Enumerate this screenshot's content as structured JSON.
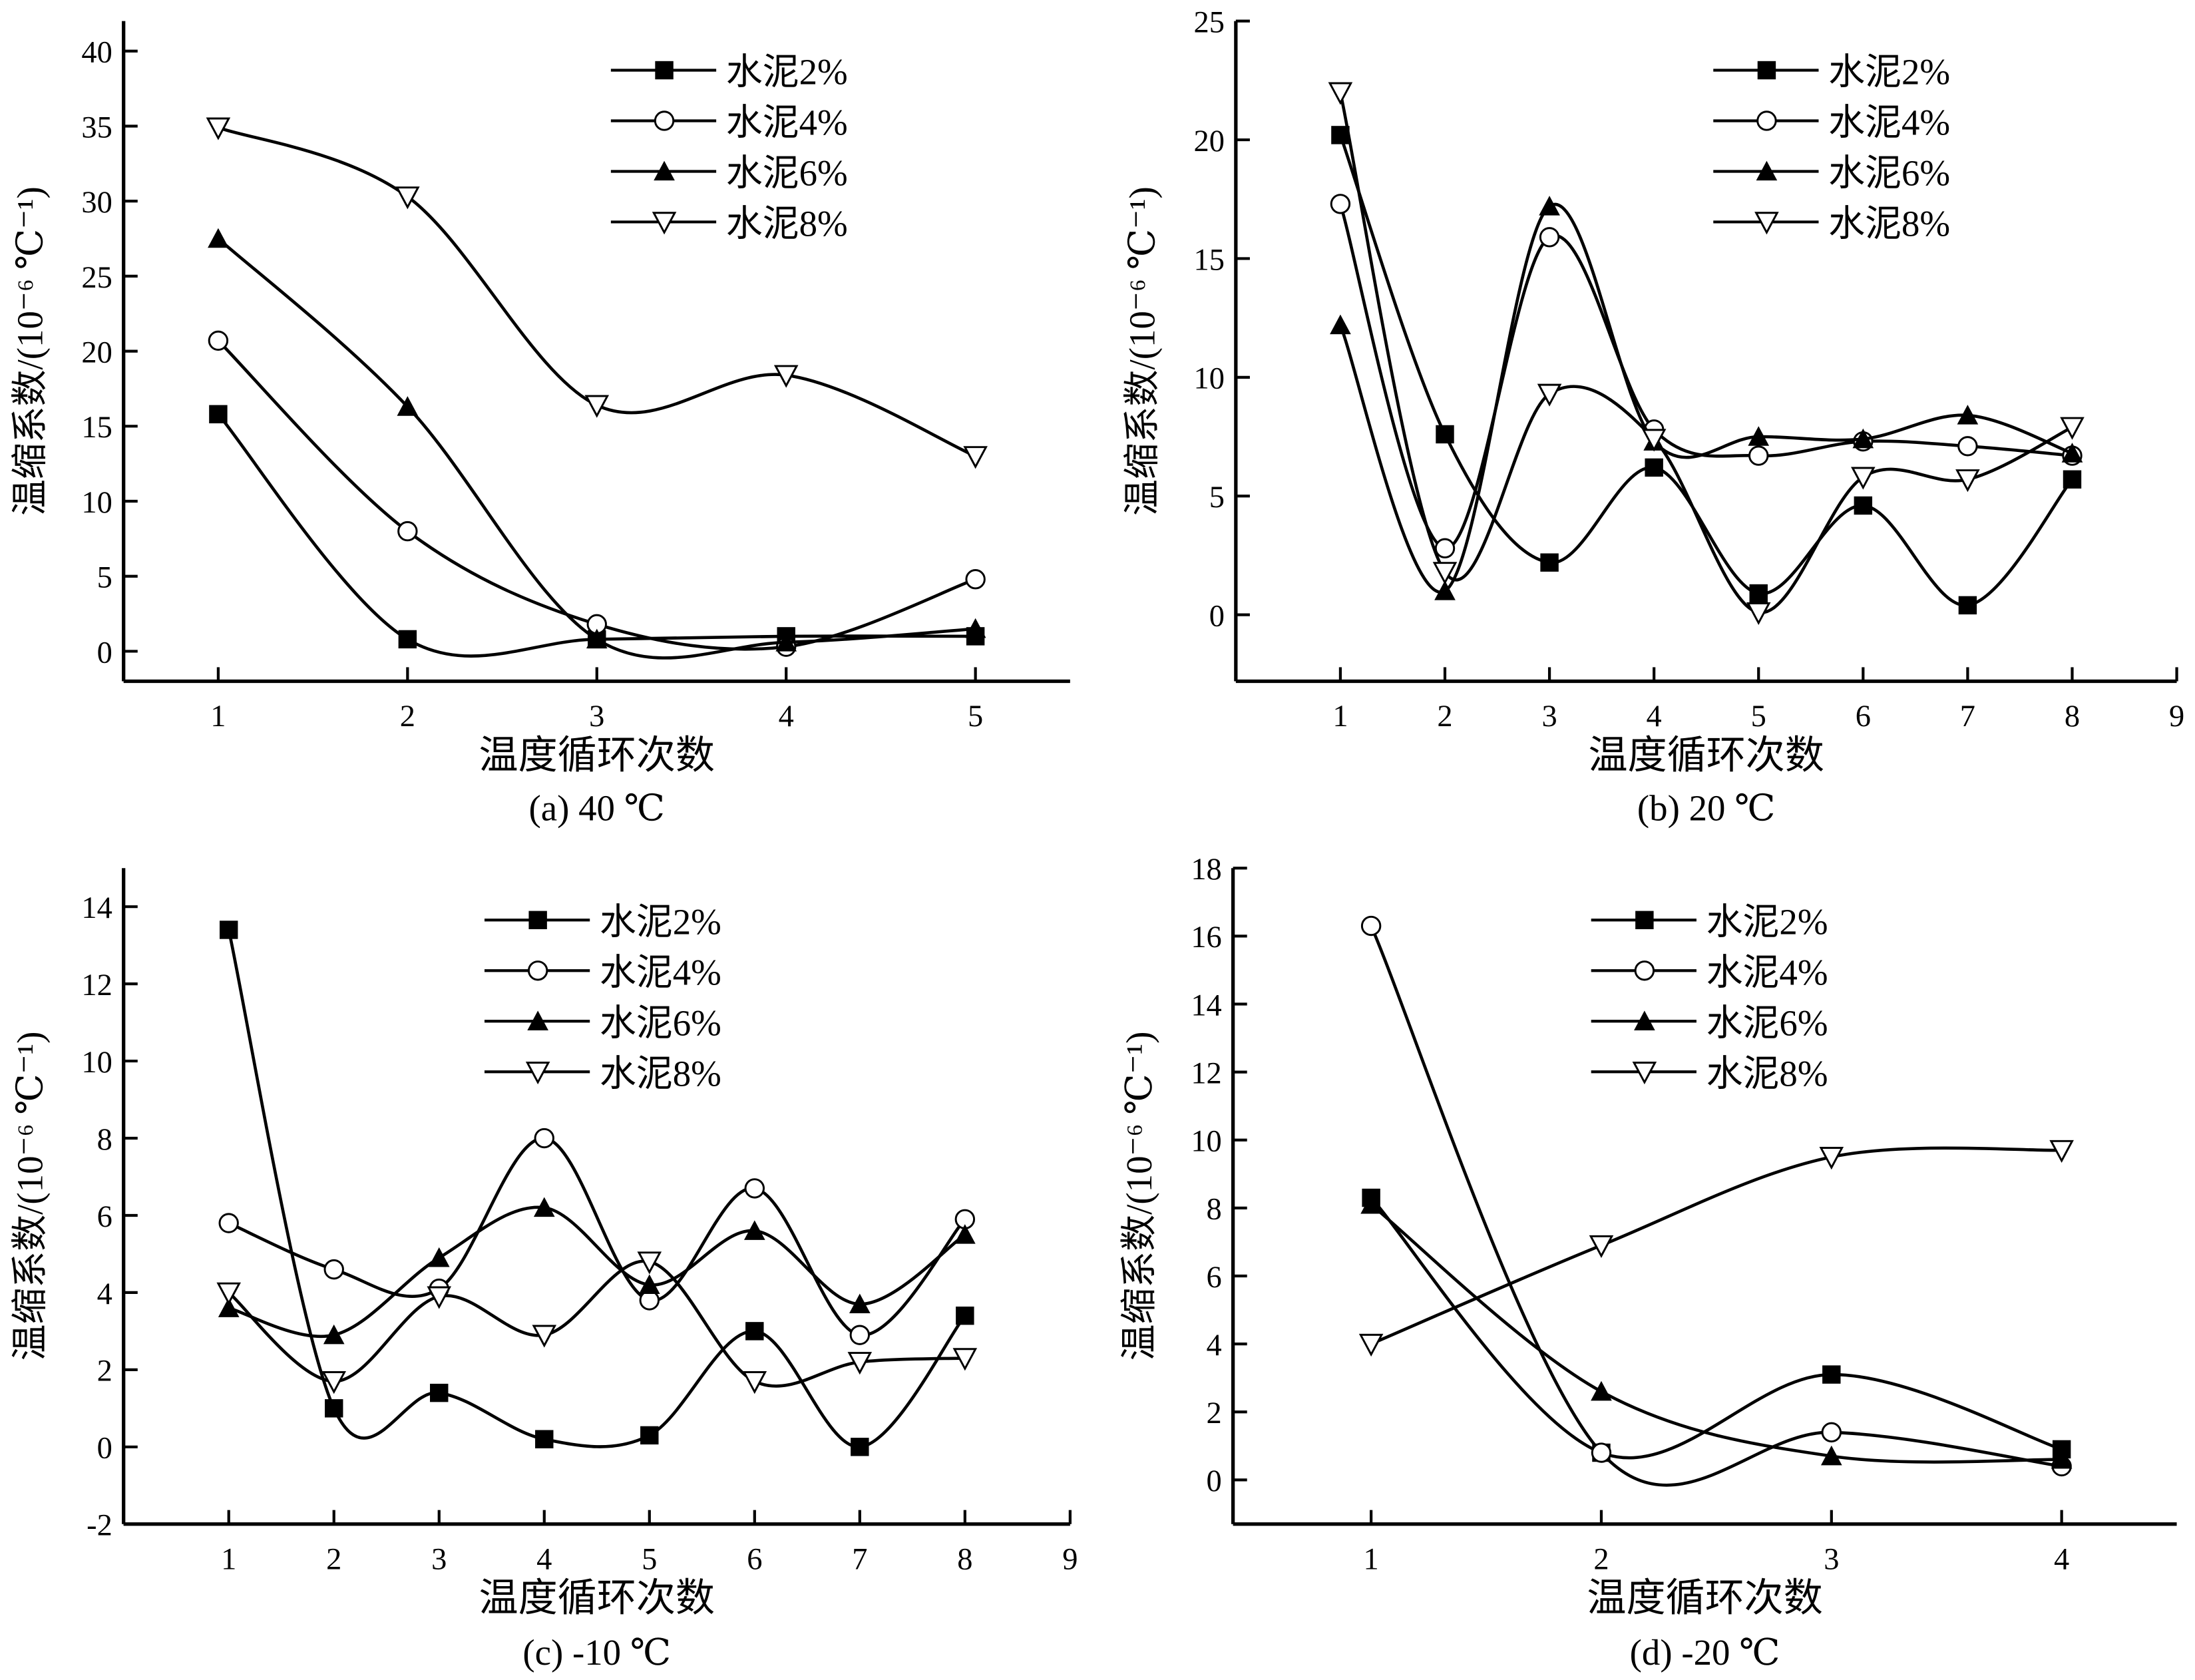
{
  "figure": {
    "series_names": [
      "水泥2%",
      "水泥4%",
      "水泥6%",
      "水泥8%"
    ],
    "markers": [
      "filled-square",
      "open-circle",
      "filled-triangle-up",
      "open-triangle-down"
    ],
    "line_color": "#000000",
    "background": "#ffffff"
  },
  "chart_data": [
    {
      "type": "line",
      "panel": "a",
      "caption": "(a) 40 ℃",
      "title": "",
      "xlabel": "温度循环次数",
      "ylabel": "温缩系数/(10⁻⁶ ℃⁻¹)",
      "x": [
        1,
        2,
        3,
        4,
        5
      ],
      "xticks": [
        1,
        2,
        3,
        4,
        5
      ],
      "xlim": [
        0.5,
        5.5
      ],
      "yticks": [
        0,
        5,
        10,
        15,
        20,
        25,
        30,
        35,
        40
      ],
      "ylim": [
        -2,
        42
      ],
      "legend": "top-right",
      "grid": false,
      "series": [
        {
          "name": "水泥2%",
          "values": [
            15.8,
            0.8,
            0.8,
            1.0,
            1.0
          ]
        },
        {
          "name": "水泥4%",
          "values": [
            20.7,
            8.0,
            1.8,
            0.3,
            4.8
          ]
        },
        {
          "name": "水泥6%",
          "values": [
            27.5,
            16.3,
            0.8,
            0.6,
            1.5
          ]
        },
        {
          "name": "水泥8%",
          "values": [
            34.9,
            30.3,
            16.4,
            18.4,
            13.0
          ]
        }
      ]
    },
    {
      "type": "line",
      "panel": "b",
      "caption": "(b) 20 ℃",
      "title": "",
      "xlabel": "温度循环次数",
      "ylabel": "温缩系数/(10⁻⁶ ℃⁻¹)",
      "x": [
        1,
        2,
        3,
        4,
        5,
        6,
        7,
        8
      ],
      "xticks": [
        1,
        2,
        3,
        4,
        5,
        6,
        7,
        8,
        9
      ],
      "xlim": [
        0,
        9
      ],
      "yticks": [
        0,
        5,
        10,
        15,
        20,
        25
      ],
      "ylim": [
        -2.8,
        25
      ],
      "legend": "top-right",
      "grid": false,
      "series": [
        {
          "name": "水泥2%",
          "values": [
            20.2,
            7.6,
            2.2,
            6.2,
            0.9,
            4.6,
            0.4,
            5.7
          ]
        },
        {
          "name": "水泥4%",
          "values": [
            17.3,
            2.8,
            15.9,
            7.8,
            6.7,
            7.3,
            7.1,
            6.7
          ]
        },
        {
          "name": "水泥6%",
          "values": [
            12.2,
            1.0,
            17.2,
            7.3,
            7.5,
            7.4,
            8.4,
            6.8
          ]
        },
        {
          "name": "水泥8%",
          "values": [
            22.0,
            1.8,
            9.3,
            7.4,
            0.1,
            5.8,
            5.7,
            7.9
          ]
        }
      ]
    },
    {
      "type": "line",
      "panel": "c",
      "caption": "(c) -10 ℃",
      "title": "",
      "xlabel": "温度循环次数",
      "ylabel": "温缩系数/(10⁻⁶ ℃⁻¹)",
      "x": [
        1,
        2,
        3,
        4,
        5,
        6,
        7,
        8
      ],
      "xticks": [
        1,
        2,
        3,
        4,
        5,
        6,
        7,
        8,
        9
      ],
      "xlim": [
        0,
        9
      ],
      "yticks": [
        -2,
        0,
        2,
        4,
        6,
        8,
        10,
        12,
        14
      ],
      "ylim": [
        -2,
        15
      ],
      "legend": "top-right",
      "grid": false,
      "series": [
        {
          "name": "水泥2%",
          "values": [
            13.4,
            1.0,
            1.4,
            0.2,
            0.3,
            3.0,
            0.0,
            3.4
          ]
        },
        {
          "name": "水泥4%",
          "values": [
            5.8,
            4.6,
            4.1,
            8.0,
            3.8,
            6.7,
            2.9,
            5.9
          ]
        },
        {
          "name": "水泥6%",
          "values": [
            3.6,
            2.9,
            4.9,
            6.2,
            4.2,
            5.6,
            3.7,
            5.5
          ]
        },
        {
          "name": "水泥8%",
          "values": [
            4.0,
            1.7,
            3.9,
            2.9,
            4.8,
            1.7,
            2.2,
            2.3
          ]
        }
      ]
    },
    {
      "type": "line",
      "panel": "d",
      "caption": "(d) -20 ℃",
      "title": "",
      "xlabel": "温度循环次数",
      "ylabel": "温缩系数/(10⁻⁶ ℃⁻¹)",
      "x": [
        1,
        2,
        3,
        4
      ],
      "xticks": [
        1,
        2,
        3,
        4
      ],
      "xlim": [
        0.4,
        4.5
      ],
      "yticks": [
        0,
        2,
        4,
        6,
        8,
        10,
        12,
        14,
        16,
        18
      ],
      "ylim": [
        -1.3,
        18
      ],
      "legend": "top-right",
      "grid": false,
      "series": [
        {
          "name": "水泥2%",
          "values": [
            8.3,
            0.8,
            3.1,
            0.9
          ]
        },
        {
          "name": "水泥4%",
          "values": [
            16.3,
            0.8,
            1.4,
            0.4
          ]
        },
        {
          "name": "水泥6%",
          "values": [
            8.1,
            2.6,
            0.7,
            0.6
          ]
        },
        {
          "name": "水泥8%",
          "values": [
            4.0,
            6.9,
            9.5,
            9.7
          ]
        }
      ]
    }
  ]
}
